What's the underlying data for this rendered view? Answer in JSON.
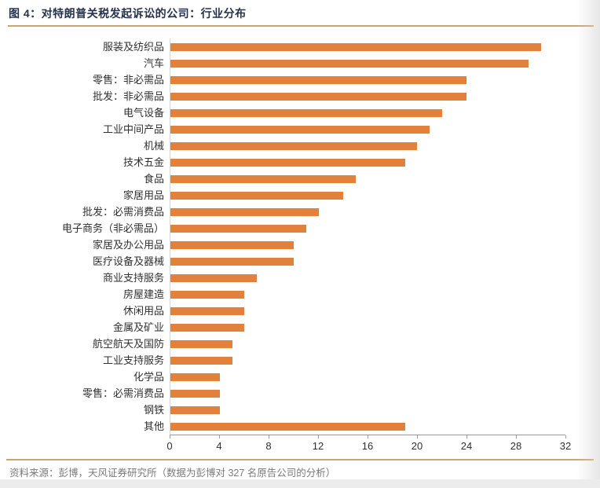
{
  "header": {
    "title": "图 4：对特朗普关税发起诉讼的公司：行业分布"
  },
  "footer": {
    "source": "资料来源：彭博，天风证券研究所（数据为彭博对 327 名原告公司的分析）"
  },
  "colors": {
    "bar": "#E2813C",
    "divider": "#C9A76A",
    "title_text": "#26334D",
    "axis_line": "#9A9A9A",
    "label_text": "#303030",
    "source_text": "#7A7A7A"
  },
  "chart_data": {
    "type": "bar",
    "orientation": "horizontal",
    "title": "对特朗普关税发起诉讼的公司：行业分布",
    "categories": [
      "服装及纺织品",
      "汽车",
      "零售：非必需品",
      "批发：非必需品",
      "电气设备",
      "工业中间产品",
      "机械",
      "技术五金",
      "食品",
      "家居用品",
      "批发：必需消费品",
      "电子商务（非必需品）",
      "家居及办公用品",
      "医疗设备及器械",
      "商业支持服务",
      "房屋建造",
      "休闲用品",
      "金属及矿业",
      "航空航天及国防",
      "工业支持服务",
      "化学品",
      "零售：必需消费品",
      "钢铁",
      "其他"
    ],
    "values": [
      30,
      29,
      24,
      24,
      22,
      21,
      20,
      19,
      15,
      14,
      12,
      11,
      10,
      10,
      7,
      6,
      6,
      6,
      5,
      5,
      4,
      4,
      4,
      19
    ],
    "xlabel": "",
    "ylabel": "",
    "xlim": [
      0,
      32
    ],
    "xticks": [
      0,
      4,
      8,
      12,
      16,
      20,
      24,
      28,
      32
    ],
    "grid": "off",
    "legend": "none"
  }
}
